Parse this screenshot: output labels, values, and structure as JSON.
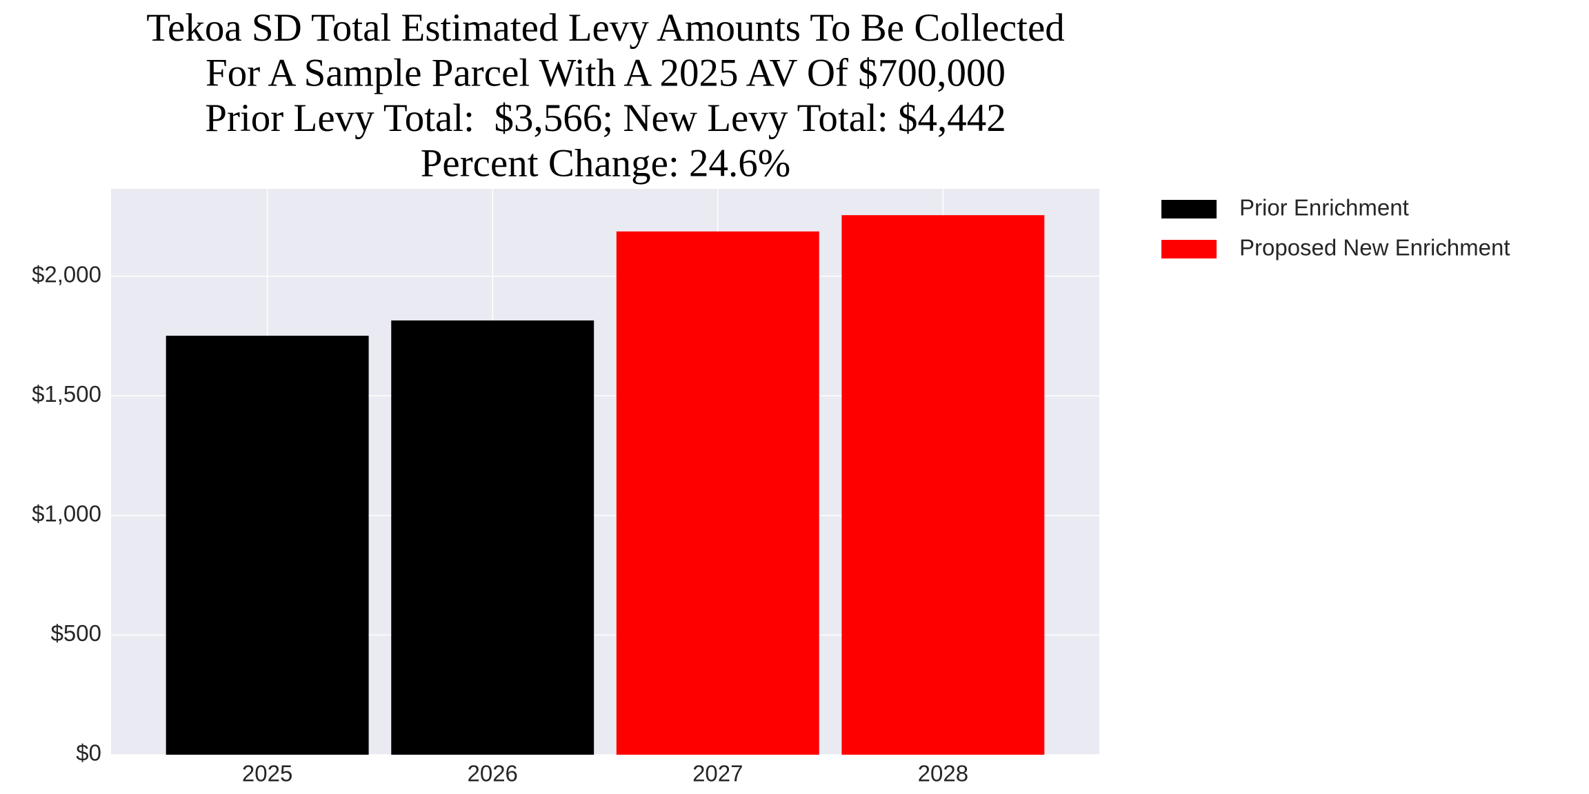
{
  "chart_data": {
    "type": "bar",
    "title": [
      "Tekoa SD Total Estimated Levy Amounts To Be Collected",
      "For A Sample Parcel With A 2025 AV Of $700,000",
      "Prior Levy Total:  $3,566; New Levy Total: $4,442",
      "Percent Change: 24.6%"
    ],
    "categories": [
      "2025",
      "2026",
      "2027",
      "2028"
    ],
    "series": [
      {
        "name": "Prior Enrichment",
        "color": "#000000",
        "values": [
          1751,
          1815,
          null,
          null
        ]
      },
      {
        "name": "Proposed New Enrichment",
        "color": "#ff0000",
        "values": [
          null,
          null,
          2187,
          2255
        ]
      }
    ],
    "ylim": [
      0,
      2365
    ],
    "yticks": [
      {
        "value": 0,
        "label": "$0"
      },
      {
        "value": 500,
        "label": "$500"
      },
      {
        "value": 1000,
        "label": "$1,000"
      },
      {
        "value": 1500,
        "label": "$1,500"
      },
      {
        "value": 2000,
        "label": "$2,000"
      }
    ],
    "grid": true,
    "legend": "outside-right"
  }
}
